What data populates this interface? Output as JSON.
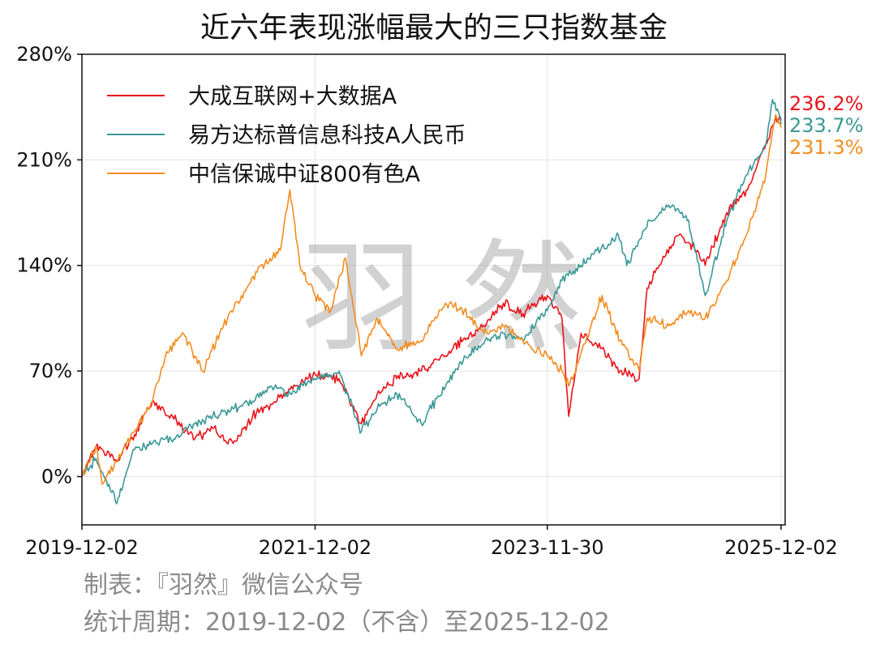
{
  "chart_data": {
    "type": "line",
    "title": "近六年表现涨幅最大的三只指数基金",
    "xlabel": "",
    "ylabel": "",
    "x_ticks": [
      "2019-12-02",
      "2021-12-02",
      "2023-11-30",
      "2025-12-02"
    ],
    "y_ticks": [
      "0%",
      "70%",
      "140%",
      "210%",
      "280%"
    ],
    "ylim": [
      -32,
      280
    ],
    "grid": true,
    "legend_position": "top-left",
    "series": [
      {
        "name": "大成互联网+大数据A",
        "color": "#e8141c",
        "end_label": "236.2%",
        "dates": [
          "2019-12-02",
          "2020-01-15",
          "2020-03-20",
          "2020-05-15",
          "2020-07-10",
          "2020-09-15",
          "2020-11-20",
          "2021-01-15",
          "2021-03-20",
          "2021-05-20",
          "2021-07-15",
          "2021-09-15",
          "2021-12-02",
          "2022-02-15",
          "2022-04-26",
          "2022-06-15",
          "2022-08-15",
          "2022-10-31",
          "2023-01-15",
          "2023-03-15",
          "2023-05-15",
          "2023-07-15",
          "2023-09-15",
          "2023-11-30",
          "2024-01-15",
          "2024-02-05",
          "2024-03-15",
          "2024-05-15",
          "2024-07-15",
          "2024-09-13",
          "2024-10-08",
          "2024-11-15",
          "2025-01-15",
          "2025-03-15",
          "2025-04-08",
          "2025-06-15",
          "2025-08-15",
          "2025-10-15",
          "2025-11-15",
          "2025-12-02"
        ],
        "values": [
          0,
          20,
          10,
          28,
          50,
          38,
          25,
          32,
          22,
          40,
          48,
          58,
          68,
          65,
          35,
          55,
          65,
          70,
          80,
          92,
          100,
          115,
          108,
          120,
          105,
          40,
          95,
          85,
          70,
          65,
          125,
          140,
          160,
          150,
          140,
          175,
          190,
          220,
          238,
          236.2
        ]
      },
      {
        "name": "易方达标普信息科技A人民币",
        "color": "#3a9896",
        "end_label": "233.7%",
        "dates": [
          "2019-12-02",
          "2020-01-15",
          "2020-03-20",
          "2020-05-15",
          "2020-07-10",
          "2020-09-15",
          "2020-11-20",
          "2021-01-15",
          "2021-03-20",
          "2021-05-20",
          "2021-07-15",
          "2021-09-15",
          "2021-12-02",
          "2022-02-15",
          "2022-04-26",
          "2022-06-15",
          "2022-08-15",
          "2022-10-31",
          "2023-01-15",
          "2023-03-15",
          "2023-05-15",
          "2023-07-15",
          "2023-09-15",
          "2023-11-30",
          "2024-01-15",
          "2024-03-15",
          "2024-05-15",
          "2024-07-10",
          "2024-08-05",
          "2024-10-15",
          "2024-12-15",
          "2025-02-15",
          "2025-04-08",
          "2025-06-15",
          "2025-08-15",
          "2025-10-15",
          "2025-11-05",
          "2025-12-02"
        ],
        "values": [
          0,
          12,
          -18,
          18,
          22,
          25,
          35,
          40,
          45,
          50,
          60,
          55,
          65,
          70,
          30,
          45,
          55,
          35,
          60,
          80,
          88,
          95,
          90,
          110,
          130,
          140,
          150,
          160,
          140,
          170,
          180,
          170,
          120,
          170,
          200,
          220,
          250,
          233.7
        ]
      },
      {
        "name": "中信保诚中证800有色A",
        "color": "#f28c1e",
        "end_label": "231.3%",
        "dates": [
          "2019-12-02",
          "2020-01-15",
          "2020-02-03",
          "2020-03-20",
          "2020-05-15",
          "2020-07-10",
          "2020-08-20",
          "2020-10-15",
          "2020-12-15",
          "2021-02-18",
          "2021-04-15",
          "2021-06-15",
          "2021-08-15",
          "2021-09-14",
          "2021-10-15",
          "2021-12-02",
          "2022-01-20",
          "2022-03-07",
          "2022-04-26",
          "2022-06-15",
          "2022-08-15",
          "2022-10-31",
          "2023-01-15",
          "2023-03-15",
          "2023-05-15",
          "2023-07-15",
          "2023-09-15",
          "2023-11-30",
          "2024-01-15",
          "2024-02-05",
          "2024-04-15",
          "2024-05-20",
          "2024-07-15",
          "2024-09-13",
          "2024-10-08",
          "2024-12-15",
          "2025-02-15",
          "2025-04-08",
          "2025-06-15",
          "2025-08-15",
          "2025-10-15",
          "2025-11-15",
          "2025-12-02"
        ],
        "values": [
          0,
          20,
          -5,
          10,
          30,
          50,
          80,
          95,
          70,
          100,
          120,
          140,
          150,
          190,
          140,
          120,
          110,
          145,
          80,
          105,
          85,
          90,
          115,
          110,
          95,
          100,
          90,
          80,
          70,
          60,
          100,
          120,
          90,
          70,
          105,
          100,
          110,
          105,
          130,
          160,
          200,
          240,
          231.3
        ]
      }
    ]
  },
  "watermark": "羽 然",
  "footer": {
    "line1": "制表：『羽然』微信公众号",
    "line2": "统计周期：2019-12-02（不含）至2025-12-02"
  }
}
